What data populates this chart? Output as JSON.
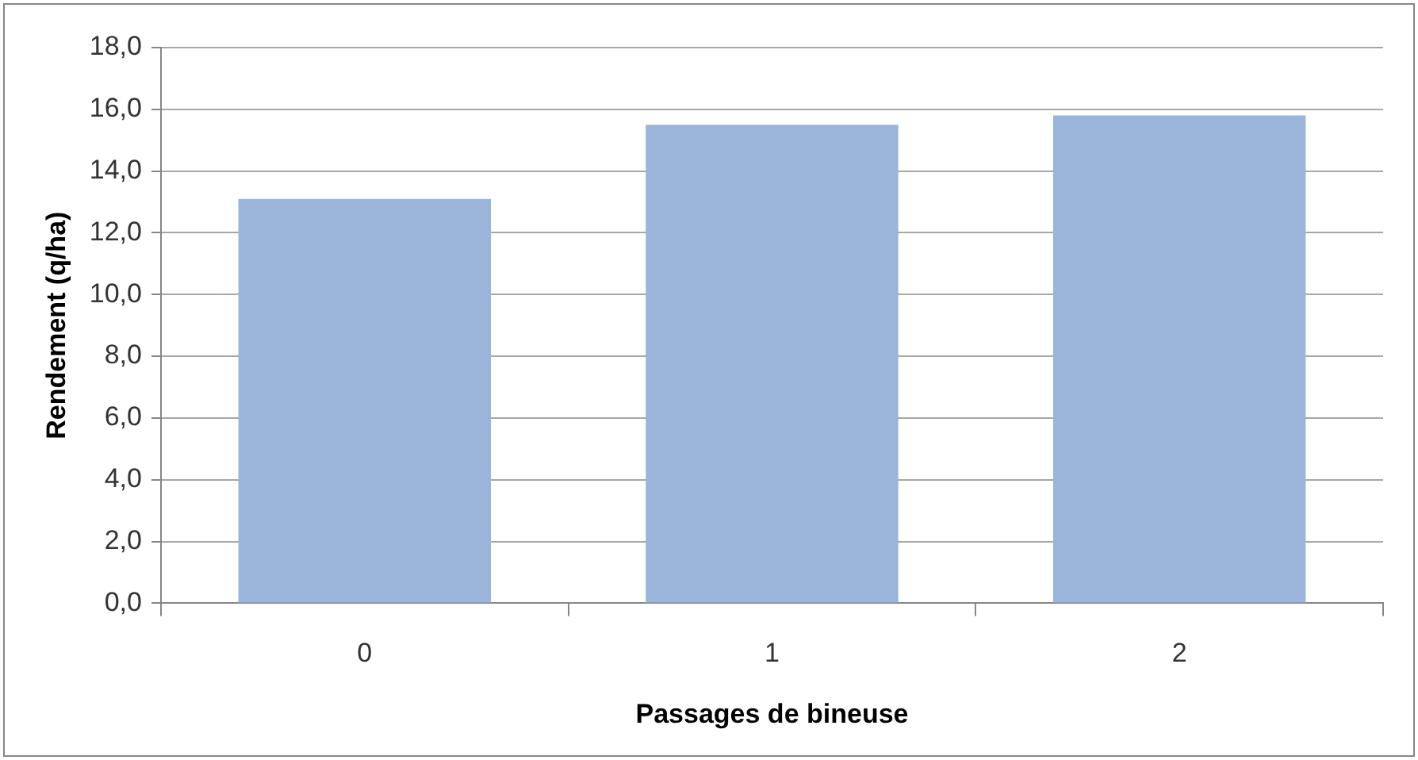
{
  "chart_data": {
    "type": "bar",
    "xlabel": "Passages de bineuse",
    "ylabel": "Rendement (q/ha)",
    "categories": [
      "0",
      "1",
      "2"
    ],
    "values": [
      13.1,
      15.5,
      15.8
    ],
    "color": "#9ab5d9",
    "ylim": [
      0,
      18
    ],
    "yticks": [
      {
        "value": 0,
        "label": "0,0"
      },
      {
        "value": 2,
        "label": "2,0"
      },
      {
        "value": 4,
        "label": "4,0"
      },
      {
        "value": 6,
        "label": "6,0"
      },
      {
        "value": 8,
        "label": "8,0"
      },
      {
        "value": 10,
        "label": "10,0"
      },
      {
        "value": 12,
        "label": "12,0"
      },
      {
        "value": 14,
        "label": "14,0"
      },
      {
        "value": 16,
        "label": "16,0"
      },
      {
        "value": 18,
        "label": "18,0"
      }
    ],
    "grid": "y",
    "legend": false
  }
}
